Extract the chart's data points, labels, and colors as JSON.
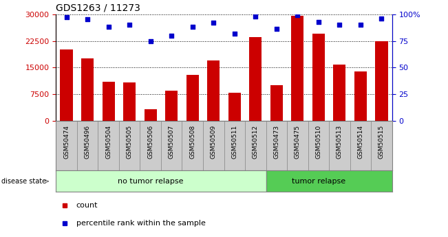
{
  "title": "GDS1263 / 11273",
  "samples": [
    "GSM50474",
    "GSM50496",
    "GSM50504",
    "GSM50505",
    "GSM50506",
    "GSM50507",
    "GSM50508",
    "GSM50509",
    "GSM50511",
    "GSM50512",
    "GSM50473",
    "GSM50475",
    "GSM50510",
    "GSM50513",
    "GSM50514",
    "GSM50515"
  ],
  "counts": [
    20000,
    17500,
    11000,
    10800,
    3200,
    8500,
    13000,
    17000,
    8000,
    23500,
    10000,
    29500,
    24500,
    15800,
    14000,
    22500
  ],
  "percentiles": [
    97,
    95,
    88,
    90,
    75,
    80,
    88,
    92,
    82,
    98,
    86,
    99,
    93,
    90,
    90,
    96
  ],
  "no_tumor_count": 10,
  "tumor_count": 6,
  "bar_color": "#cc0000",
  "dot_color": "#0000cc",
  "no_tumor_bg_light": "#ccffcc",
  "tumor_bg": "#55cc55",
  "xtick_bg": "#cccccc",
  "yticks_left": [
    0,
    7500,
    15000,
    22500,
    30000
  ],
  "yticks_right": [
    0,
    25,
    50,
    75,
    100
  ],
  "ylim_left": [
    0,
    30000
  ],
  "ylim_right": [
    0,
    100
  ]
}
